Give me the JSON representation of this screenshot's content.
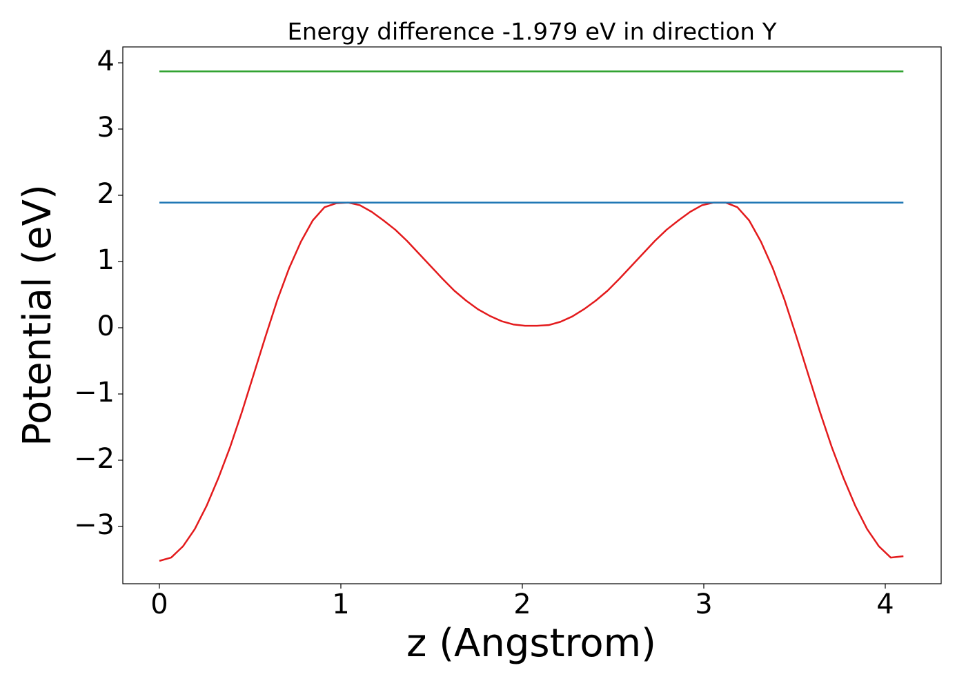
{
  "chart_data": {
    "type": "line",
    "title": "Energy difference -1.979 eV in direction Y",
    "x_label": "z (Angstrom)",
    "y_label": "Potential (eV)",
    "xlim": [
      -0.2015,
      4.308
    ],
    "ylim": [
      -3.865,
      4.24
    ],
    "xticks": [
      0,
      1,
      2,
      3,
      4
    ],
    "yticks": [
      {
        "value": -3,
        "label": "−3"
      },
      {
        "value": -2,
        "label": "−2"
      },
      {
        "value": -1,
        "label": "−1"
      },
      0,
      1,
      2,
      3,
      4
    ],
    "grid": false,
    "series": [
      {
        "color": "#e31a1c",
        "x": [
          0,
          0.065,
          0.13,
          0.195,
          0.26,
          0.325,
          0.39,
          0.455,
          0.52,
          0.585,
          0.65,
          0.715,
          0.78,
          0.845,
          0.91,
          0.975,
          1.04,
          1.105,
          1.17,
          1.235,
          1.3,
          1.365,
          1.43,
          1.495,
          1.56,
          1.625,
          1.69,
          1.755,
          1.82,
          1.885,
          1.95,
          2.015,
          2.08,
          2.145,
          2.21,
          2.275,
          2.34,
          2.405,
          2.47,
          2.535,
          2.6,
          2.665,
          2.73,
          2.795,
          2.86,
          2.925,
          2.99,
          3.055,
          3.12,
          3.185,
          3.25,
          3.315,
          3.38,
          3.445,
          3.51,
          3.575,
          3.64,
          3.705,
          3.77,
          3.835,
          3.9,
          3.965,
          4.03,
          4.1
        ],
        "values": [
          -3.52,
          -3.47,
          -3.3,
          -3.04,
          -2.69,
          -2.27,
          -1.8,
          -1.27,
          -0.7,
          -0.13,
          0.42,
          0.9,
          1.3,
          1.62,
          1.82,
          1.88,
          1.89,
          1.85,
          1.75,
          1.62,
          1.48,
          1.31,
          1.12,
          0.93,
          0.74,
          0.56,
          0.41,
          0.28,
          0.18,
          0.1,
          0.05,
          0.03,
          0.03,
          0.04,
          0.09,
          0.17,
          0.28,
          0.41,
          0.56,
          0.74,
          0.93,
          1.12,
          1.31,
          1.48,
          1.62,
          1.75,
          1.85,
          1.89,
          1.89,
          1.82,
          1.62,
          1.3,
          0.9,
          0.42,
          -0.13,
          -0.7,
          -1.27,
          -1.8,
          -2.27,
          -2.69,
          -3.04,
          -3.3,
          -3.47,
          -3.45
        ]
      },
      {
        "color": "#1f77b4",
        "x": [
          0,
          4.1
        ],
        "values": [
          1.89,
          1.89
        ]
      },
      {
        "color": "#2ca02c",
        "x": [
          0,
          4.1
        ],
        "values": [
          3.87,
          3.87
        ]
      }
    ]
  }
}
